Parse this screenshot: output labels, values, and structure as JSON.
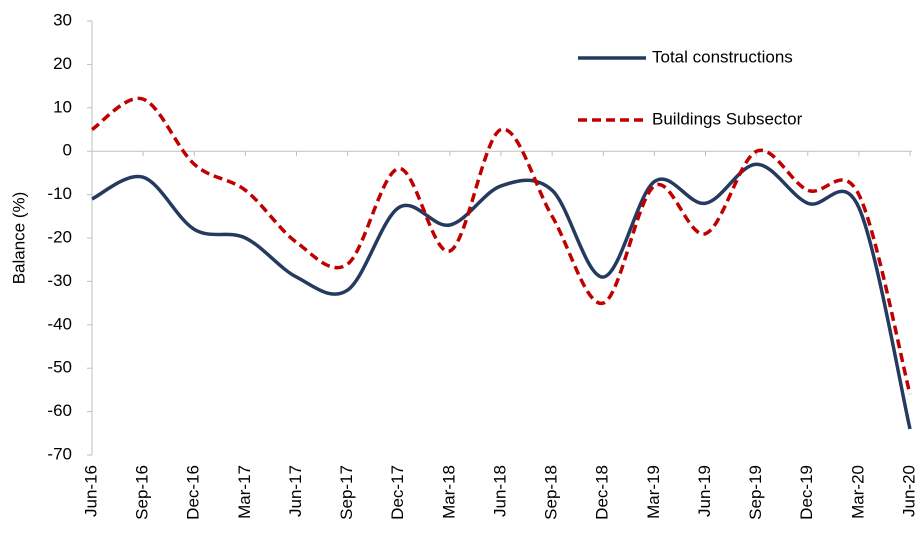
{
  "chart_data": {
    "type": "line",
    "y_label": "Balance (%)",
    "categories": [
      "Jun-16",
      "Sep-16",
      "Dec-16",
      "Mar-17",
      "Jun-17",
      "Sep-17",
      "Dec-17",
      "Mar-18",
      "Jun-18",
      "Sep-18",
      "Dec-18",
      "Mar-19",
      "Jun-19",
      "Sep-19",
      "Dec-19",
      "Mar-20",
      "Jun-20"
    ],
    "series": [
      {
        "name": "Total constructions",
        "color": "#243a5e",
        "dash": false,
        "values": [
          -11,
          -6,
          -18,
          -20,
          -29,
          -32,
          -13,
          -17,
          -8,
          -9,
          -29,
          -7,
          -12,
          -3,
          -12,
          -13,
          -64
        ]
      },
      {
        "name": "Buildings Subsector",
        "color": "#c00000",
        "dash": true,
        "values": [
          5,
          12,
          -3,
          -9,
          -21,
          -26,
          -4,
          -23,
          5,
          -15,
          -35,
          -8,
          -19,
          0,
          -9,
          -10,
          -56
        ]
      }
    ],
    "ylim": [
      -70,
      30
    ],
    "yticks": [
      -70,
      -60,
      -50,
      -40,
      -30,
      -20,
      -10,
      0,
      10,
      20,
      30
    ]
  }
}
